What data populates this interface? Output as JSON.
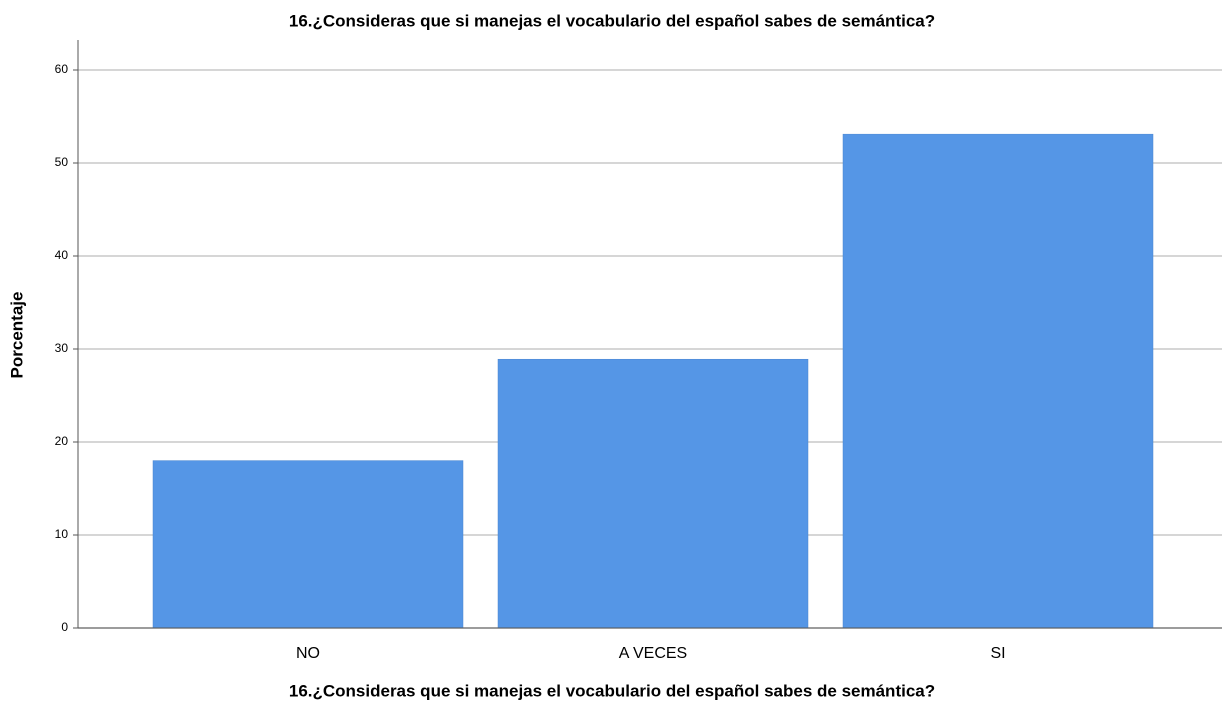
{
  "chart_data": {
    "type": "bar",
    "title": "16.¿Consideras que si manejas el vocabulario del español sabes de semántica?",
    "x_label": "16.¿Consideras que si manejas el vocabulario del español sabes de semántica?",
    "y_label": "Porcentaje",
    "categories": [
      "NO",
      "A VECES",
      "SI"
    ],
    "values": [
      18,
      28.9,
      53.1
    ],
    "color": "#5596e6",
    "ylim": [
      0,
      60
    ],
    "yticks": [
      0,
      10,
      20,
      30,
      40,
      50,
      60
    ],
    "grid": true
  }
}
